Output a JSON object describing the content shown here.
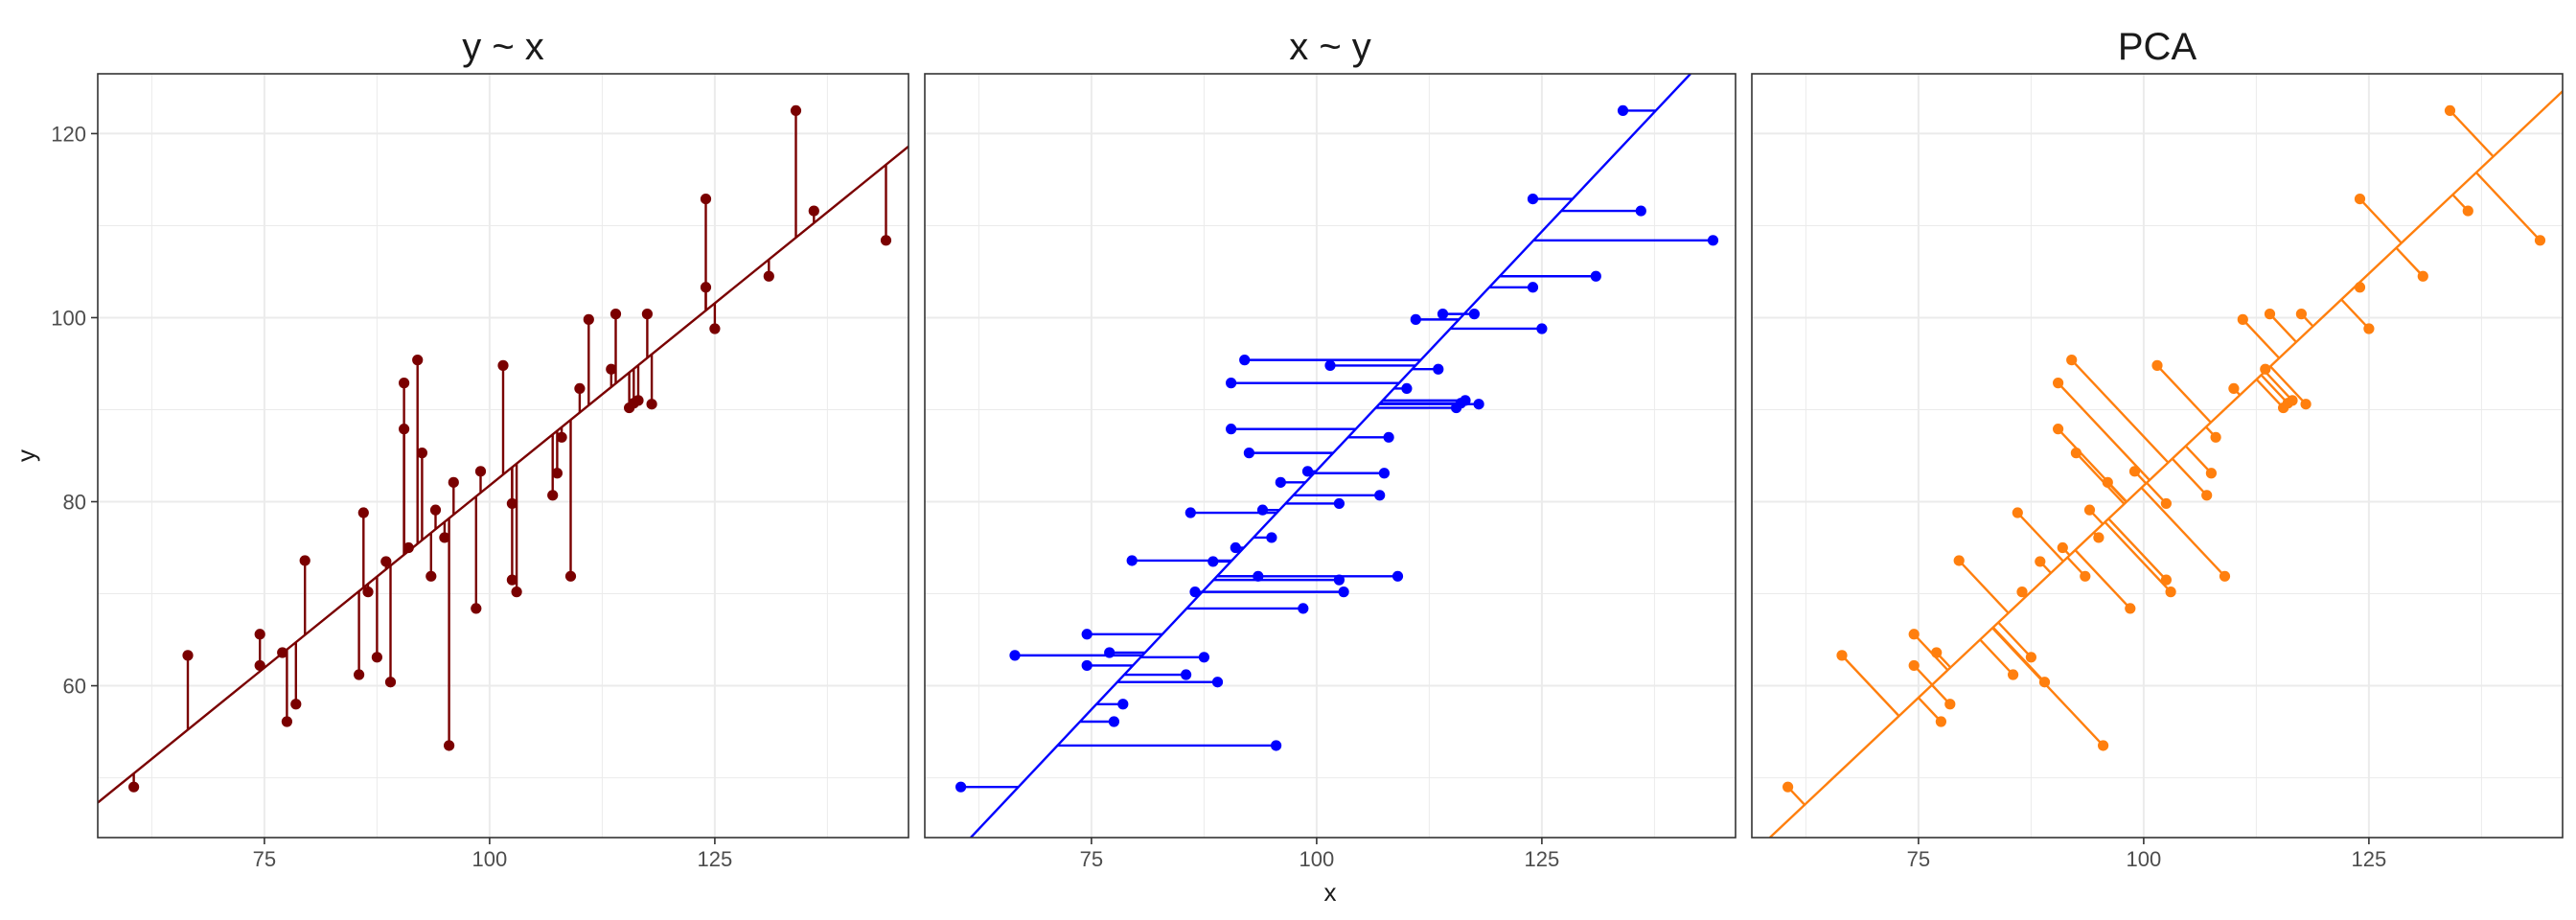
{
  "figure": {
    "xlabel": "x",
    "ylabel": "y"
  },
  "colors": {
    "panel1": "#7a0000",
    "panel2": "#0000ff",
    "panel3": "#ff7f0e",
    "grid": "#ebebeb",
    "border": "#333333"
  },
  "chart_data": [
    {
      "type": "scatter",
      "title": "y ~ x",
      "xlabel": "x",
      "ylabel": "y",
      "xlim": [
        56.5,
        146.5
      ],
      "ylim": [
        43.5,
        126.5
      ],
      "x_ticks": [
        75,
        100,
        125
      ],
      "y_ticks": [
        60,
        80,
        100,
        120
      ],
      "grid": true,
      "fit_line": [
        [
          56.5,
          47.3
        ],
        [
          146.5,
          118.6
        ]
      ],
      "projection": "vertical",
      "points": [
        {
          "x": 60.5,
          "y": 49.0
        },
        {
          "x": 66.5,
          "y": 63.3
        },
        {
          "x": 74.5,
          "y": 65.6
        },
        {
          "x": 74.5,
          "y": 62.2
        },
        {
          "x": 77.0,
          "y": 63.6
        },
        {
          "x": 77.5,
          "y": 56.1
        },
        {
          "x": 78.5,
          "y": 58.0
        },
        {
          "x": 79.5,
          "y": 73.6
        },
        {
          "x": 85.5,
          "y": 61.2
        },
        {
          "x": 86.0,
          "y": 78.8
        },
        {
          "x": 86.5,
          "y": 70.2
        },
        {
          "x": 87.5,
          "y": 63.1
        },
        {
          "x": 88.5,
          "y": 73.5
        },
        {
          "x": 89.0,
          "y": 60.4
        },
        {
          "x": 90.5,
          "y": 92.9
        },
        {
          "x": 90.5,
          "y": 87.9
        },
        {
          "x": 91.0,
          "y": 75.0
        },
        {
          "x": 92.0,
          "y": 95.4
        },
        {
          "x": 92.5,
          "y": 85.3
        },
        {
          "x": 93.5,
          "y": 71.9
        },
        {
          "x": 94.0,
          "y": 79.1
        },
        {
          "x": 95.0,
          "y": 76.1
        },
        {
          "x": 95.5,
          "y": 53.5
        },
        {
          "x": 96.0,
          "y": 82.1
        },
        {
          "x": 98.5,
          "y": 68.4
        },
        {
          "x": 99.0,
          "y": 83.3
        },
        {
          "x": 101.5,
          "y": 94.8
        },
        {
          "x": 102.5,
          "y": 71.5
        },
        {
          "x": 102.5,
          "y": 79.8
        },
        {
          "x": 103.0,
          "y": 70.2
        },
        {
          "x": 107.0,
          "y": 80.7
        },
        {
          "x": 107.5,
          "y": 83.1
        },
        {
          "x": 108.0,
          "y": 87.0
        },
        {
          "x": 109.0,
          "y": 71.9
        },
        {
          "x": 110.0,
          "y": 92.3
        },
        {
          "x": 111.0,
          "y": 99.8
        },
        {
          "x": 113.5,
          "y": 94.4
        },
        {
          "x": 114.0,
          "y": 100.4
        },
        {
          "x": 115.5,
          "y": 90.2
        },
        {
          "x": 116.0,
          "y": 90.7
        },
        {
          "x": 116.5,
          "y": 91.0
        },
        {
          "x": 117.5,
          "y": 100.4
        },
        {
          "x": 118.0,
          "y": 90.6
        },
        {
          "x": 124.0,
          "y": 112.9
        },
        {
          "x": 124.0,
          "y": 103.3
        },
        {
          "x": 125.0,
          "y": 98.8
        },
        {
          "x": 131.0,
          "y": 104.5
        },
        {
          "x": 134.0,
          "y": 122.5
        },
        {
          "x": 136.0,
          "y": 111.6
        },
        {
          "x": 144.0,
          "y": 108.4
        }
      ]
    },
    {
      "type": "scatter",
      "title": "x ~ y",
      "xlabel": "x",
      "ylabel": "",
      "xlim": [
        56.5,
        146.5
      ],
      "ylim": [
        43.5,
        126.5
      ],
      "x_ticks": [
        75,
        100,
        125
      ],
      "y_ticks": [
        60,
        80,
        100,
        120
      ],
      "grid": true,
      "fit_line": [
        [
          61.6,
          43.5
        ],
        [
          141.5,
          126.5
        ]
      ],
      "projection": "horizontal",
      "points": "same as panel 1"
    },
    {
      "type": "scatter",
      "title": "PCA",
      "xlabel": "x",
      "ylabel": "",
      "xlim": [
        56.5,
        146.5
      ],
      "ylim": [
        43.5,
        126.5
      ],
      "x_ticks": [
        75,
        100,
        125
      ],
      "y_ticks": [
        60,
        80,
        100,
        120
      ],
      "grid": true,
      "fit_line": [
        [
          58.5,
          43.5
        ],
        [
          146.5,
          124.6
        ]
      ],
      "projection": "orthogonal",
      "points": "same as panel 1"
    }
  ]
}
